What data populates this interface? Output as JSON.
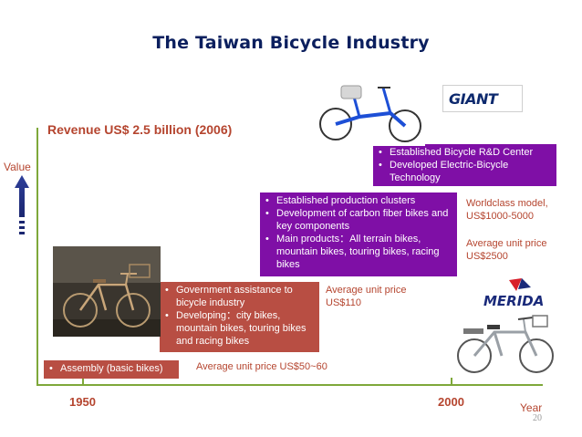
{
  "title": "The Taiwan Bicycle Industry",
  "revenue": "Revenue US$ 2.5 billion (2006)",
  "axis": {
    "y_label": "Value",
    "x_label": "Year",
    "tick_1950": "1950",
    "tick_2000": "2000"
  },
  "page_number": "20",
  "boxes": {
    "assembly": [
      "Assembly (basic bikes)"
    ],
    "government": [
      "Government assistance to bicycle industry",
      "Developing：city bikes, mountain bikes, touring bikes and racing bikes"
    ],
    "clusters": [
      "Established production clusters",
      "Development of carbon fiber bikes and  key components",
      "Main products：All terrain bikes, mountain bikes, touring bikes, racing bikes"
    ],
    "rnd": [
      "Established Bicycle R&D Center",
      "Developed Electric-Bicycle Technology"
    ]
  },
  "notes": {
    "price_50_60": "Average unit price US$50~60",
    "price_110": [
      "Average unit price",
      "US$110"
    ],
    "worldclass": [
      "Worldclass model,",
      "US$1000-5000"
    ],
    "price_2500": [
      "Average unit price",
      "US$2500"
    ]
  },
  "logos": {
    "giant": "GIANT",
    "merida": "MERIDA"
  },
  "colors": {
    "title": "#0b1f5e",
    "accent_red": "#b84e43",
    "accent_purple": "#7f0fa6",
    "axis_green": "#7ea83a",
    "text_red": "#b5452f"
  }
}
